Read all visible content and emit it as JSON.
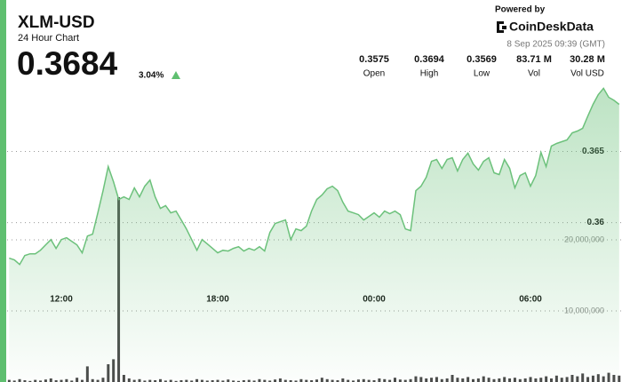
{
  "header": {
    "title": "XLM-USD",
    "subtitle": "24 Hour Chart",
    "price": "0.3684",
    "change": "3.04%",
    "powered_by": "Powered by",
    "brand": "CoinDeskData",
    "timestamp": "8 Sep 2025 09:39 (GMT)"
  },
  "stats": [
    {
      "value": "0.3575",
      "label": "Open"
    },
    {
      "value": "0.3694",
      "label": "High"
    },
    {
      "value": "0.3569",
      "label": "Low"
    },
    {
      "value": "83.71 M",
      "label": "Vol"
    },
    {
      "value": "30.28 M",
      "label": "Vol USD"
    }
  ],
  "chart_data": {
    "type": "line",
    "x": [
      10,
      10.2,
      10.4,
      10.6,
      10.8,
      11,
      11.2,
      11.4,
      11.6,
      11.8,
      12,
      12.2,
      12.4,
      12.6,
      12.8,
      13,
      13.2,
      13.4,
      13.6,
      13.8,
      14,
      14.2,
      14.4,
      14.6,
      14.8,
      15,
      15.2,
      15.4,
      15.6,
      15.8,
      16,
      16.2,
      16.4,
      16.6,
      16.8,
      17,
      17.2,
      17.4,
      17.6,
      17.8,
      18,
      18.2,
      18.4,
      18.6,
      18.8,
      19,
      19.2,
      19.4,
      19.6,
      19.8,
      20,
      20.2,
      20.4,
      20.6,
      20.8,
      21,
      21.2,
      21.4,
      21.6,
      21.8,
      22,
      22.2,
      22.4,
      22.6,
      22.8,
      23,
      23.2,
      23.4,
      23.6,
      23.8,
      24,
      24.2,
      24.4,
      24.6,
      24.8,
      25,
      25.2,
      25.4,
      25.6,
      25.8,
      26,
      26.2,
      26.4,
      26.6,
      26.8,
      27,
      27.2,
      27.4,
      27.6,
      27.8,
      28,
      28.2,
      28.4,
      28.6,
      28.8,
      29,
      29.2,
      29.4,
      29.6,
      29.8,
      30,
      30.2,
      30.4,
      30.6,
      30.8,
      31,
      31.2,
      31.4,
      31.6,
      31.8,
      32,
      32.2,
      32.4,
      32.6,
      32.8,
      33,
      33.2,
      33.4
    ],
    "xlim": [
      9.92,
      33.51
    ],
    "xticks": [
      {
        "value": 12,
        "label": "12:00"
      },
      {
        "value": 18,
        "label": "18:00"
      },
      {
        "value": 24,
        "label": "00:00"
      },
      {
        "value": 30,
        "label": "06:00"
      }
    ],
    "ylim": [
      0.3488,
      0.3719
    ],
    "yticks": [
      0.36,
      0.365
    ],
    "y2lim": [
      0,
      46250000
    ],
    "y2ticks": [
      {
        "value": 10000000,
        "label": "10,000,000"
      },
      {
        "value": 20000000,
        "label": "20,000,000"
      }
    ],
    "grid": true,
    "series": [
      {
        "type": "area",
        "color": "#6cc17b",
        "values": [
          0.3575,
          0.35738,
          0.35706,
          0.35769,
          0.35781,
          0.35781,
          0.35806,
          0.35844,
          0.35881,
          0.35819,
          0.35881,
          0.35894,
          0.35869,
          0.35844,
          0.35788,
          0.35906,
          0.35919,
          0.36069,
          0.36225,
          0.36394,
          0.36288,
          0.36163,
          0.36181,
          0.36163,
          0.36244,
          0.36181,
          0.36256,
          0.363,
          0.36181,
          0.361,
          0.36119,
          0.36069,
          0.36081,
          0.36019,
          0.35956,
          0.35881,
          0.35806,
          0.35881,
          0.3585,
          0.35819,
          0.35788,
          0.35806,
          0.358,
          0.35819,
          0.35831,
          0.358,
          0.35819,
          0.35806,
          0.35831,
          0.358,
          0.35931,
          0.35994,
          0.36006,
          0.36019,
          0.35881,
          0.35956,
          0.35944,
          0.35975,
          0.36081,
          0.36163,
          0.36194,
          0.36238,
          0.36256,
          0.36225,
          0.36144,
          0.36081,
          0.36069,
          0.36056,
          0.36019,
          0.36044,
          0.36069,
          0.36038,
          0.36081,
          0.36063,
          0.36081,
          0.36056,
          0.35956,
          0.35944,
          0.36225,
          0.36256,
          0.36319,
          0.36431,
          0.36444,
          0.36381,
          0.36444,
          0.36456,
          0.36363,
          0.36444,
          0.36488,
          0.36413,
          0.36369,
          0.36431,
          0.36456,
          0.3635,
          0.36338,
          0.36444,
          0.36381,
          0.36244,
          0.36331,
          0.3635,
          0.36256,
          0.36331,
          0.36494,
          0.36394,
          0.36538,
          0.36556,
          0.36569,
          0.36581,
          0.36631,
          0.36644,
          0.36663,
          0.3675,
          0.36831,
          0.369,
          0.36944,
          0.36881,
          0.3686,
          0.36831
        ]
      },
      {
        "type": "bar",
        "axis": "y2",
        "color": "#4a4a4a",
        "values": [
          300000,
          200000,
          400000,
          250000,
          150000,
          300000,
          200000,
          350000,
          500000,
          250000,
          300000,
          400000,
          200000,
          600000,
          300000,
          2200000,
          400000,
          300000,
          600000,
          2500000,
          3200000,
          26000000,
          1000000,
          500000,
          300000,
          400000,
          200000,
          300000,
          250000,
          400000,
          200000,
          300000,
          150000,
          250000,
          300000,
          200000,
          400000,
          300000,
          200000,
          250000,
          300000,
          200000,
          350000,
          200000,
          150000,
          250000,
          300000,
          200000,
          400000,
          300000,
          200000,
          350000,
          500000,
          300000,
          250000,
          200000,
          400000,
          300000,
          250000,
          350000,
          600000,
          400000,
          300000,
          250000,
          500000,
          300000,
          200000,
          350000,
          400000,
          300000,
          250000,
          500000,
          400000,
          300000,
          600000,
          350000,
          300000,
          400000,
          800000,
          700000,
          500000,
          600000,
          700000,
          400000,
          500000,
          1000000,
          600000,
          500000,
          700000,
          400000,
          500000,
          800000,
          600000,
          400000,
          500000,
          700000,
          500000,
          600000,
          400000,
          500000,
          700000,
          500000,
          600000,
          800000,
          500000,
          900000,
          600000,
          700000,
          1000000,
          800000,
          1200000,
          700000,
          900000,
          1100000,
          800000,
          1300000,
          1000000,
          900000
        ]
      }
    ]
  }
}
